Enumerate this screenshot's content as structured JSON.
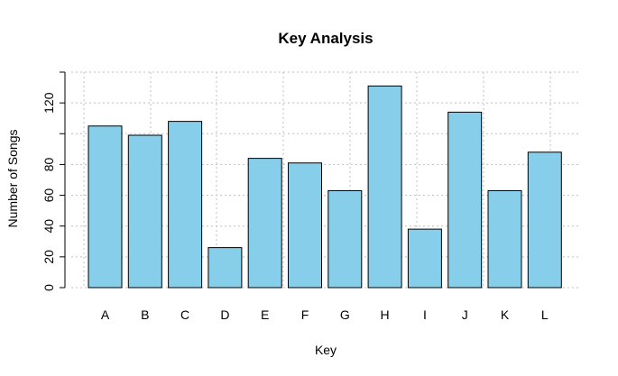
{
  "chart_data": {
    "type": "bar",
    "title": "Key Analysis",
    "xlabel": "Key",
    "ylabel": "Number of Songs",
    "categories": [
      "A",
      "B",
      "C",
      "D",
      "E",
      "F",
      "G",
      "H",
      "I",
      "J",
      "K",
      "L"
    ],
    "values": [
      105,
      99,
      108,
      26,
      84,
      81,
      63,
      131,
      38,
      114,
      63,
      88
    ],
    "ylim": [
      0,
      140
    ],
    "y_ticks": [
      0,
      20,
      40,
      60,
      80,
      100,
      120,
      140
    ],
    "y_tick_labels": [
      "0",
      "20",
      "40",
      "60",
      "80",
      "",
      "120",
      ""
    ],
    "grid": true,
    "bar_color": "#87CEEB",
    "bar_border_color": "#000000",
    "grid_color": "#bfbfbf"
  }
}
